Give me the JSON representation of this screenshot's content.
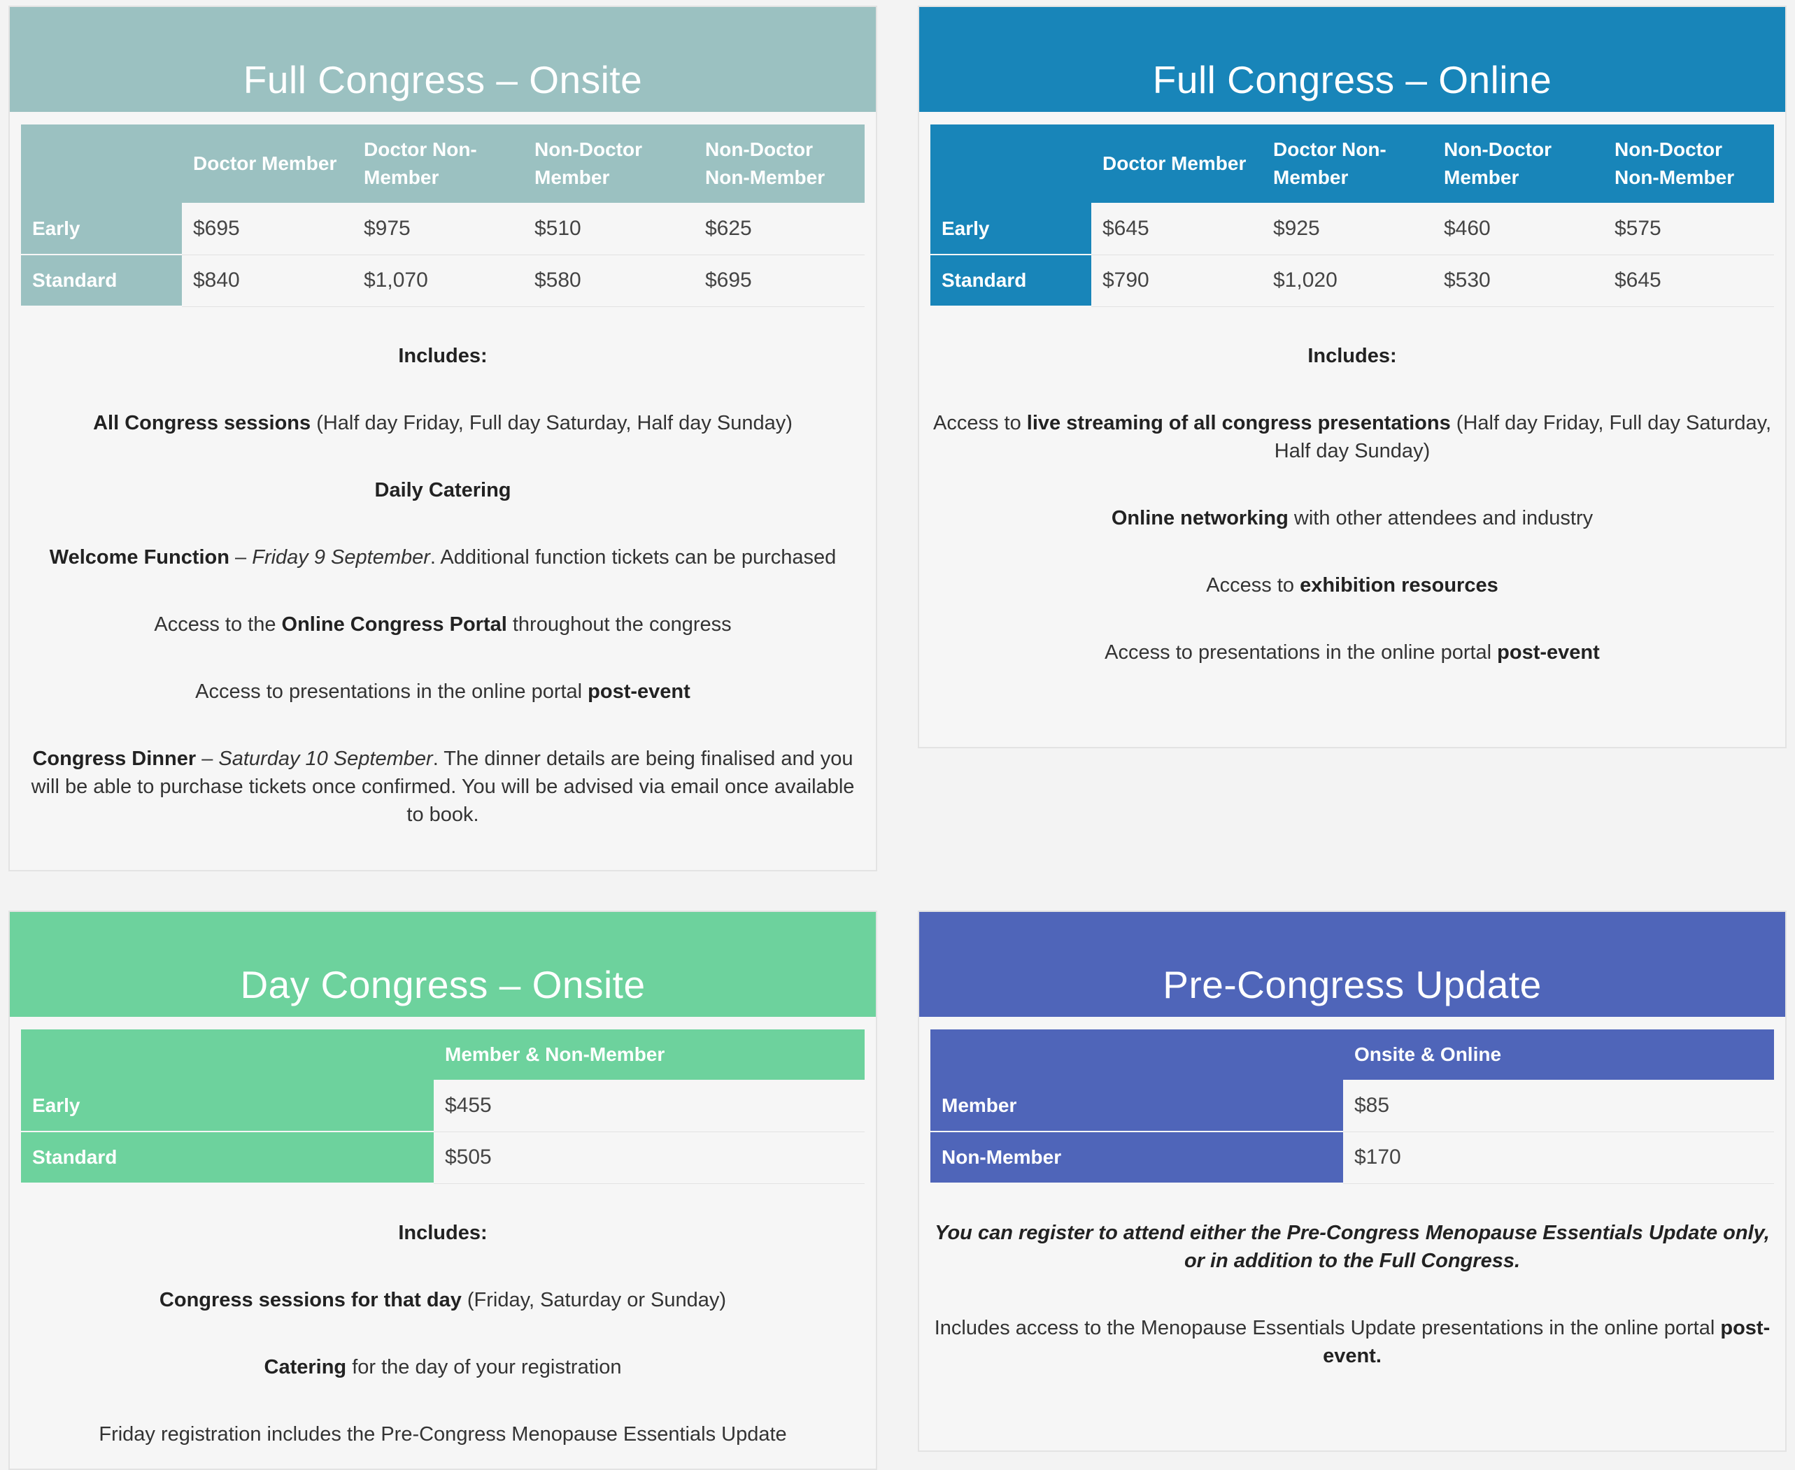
{
  "full_onsite": {
    "title": "Full Congress – Onsite",
    "columns": [
      "",
      "Doctor Member",
      "Doctor Non-Member",
      "Non-Doctor Member",
      "Non-Doctor Non-Member"
    ],
    "rows": [
      {
        "label": "Early",
        "values": [
          "$695",
          "$975",
          "$510",
          "$625"
        ]
      },
      {
        "label": "Standard",
        "values": [
          "$840",
          "$1,070",
          "$580",
          "$695"
        ]
      }
    ],
    "includes_label": "Includes:",
    "items": [
      {
        "bold": "All Congress sessions",
        "text": " (Half day Friday, Full day Saturday, Half day Sunday)"
      },
      {
        "bold": "Daily Catering"
      },
      {
        "bold": "Welcome Function",
        "sep": " – ",
        "italic": "Friday 9 September",
        "text": ". Additional function tickets can be purchased"
      },
      {
        "pre": "Access to the ",
        "bold": "Online Congress Portal",
        "text": " throughout the congress"
      },
      {
        "pre": "Access to presentations in the online portal ",
        "bold": "post-event"
      },
      {
        "bold": "Congress Dinner",
        "sep": " – ",
        "italic": "Saturday 10 September",
        "text": ". The dinner details are being finalised and you will be able to purchase tickets once confirmed. You will be advised via email once available to book."
      }
    ],
    "color": "#9bc1c1"
  },
  "full_online": {
    "title": "Full Congress – Online",
    "columns": [
      "",
      "Doctor Member",
      "Doctor Non-Member",
      "Non-Doctor Member",
      "Non-Doctor Non-Member"
    ],
    "rows": [
      {
        "label": "Early",
        "values": [
          "$645",
          "$925",
          "$460",
          "$575"
        ]
      },
      {
        "label": "Standard",
        "values": [
          "$790",
          "$1,020",
          "$530",
          "$645"
        ]
      }
    ],
    "includes_label": "Includes:",
    "items": [
      {
        "pre": "Access to ",
        "bold": "live streaming of all congress presentations",
        "text": " (Half day Friday, Full day Saturday, Half day Sunday)"
      },
      {
        "bold": "Online networking",
        "text": " with other attendees and industry"
      },
      {
        "pre": "Access to ",
        "bold": "exhibition resources"
      },
      {
        "pre": "Access to presentations in the online portal ",
        "bold": "post-event"
      }
    ],
    "color": "#1885b9"
  },
  "day_onsite": {
    "title": "Day Congress – Onsite",
    "columns": [
      "",
      "Member & Non-Member"
    ],
    "rows": [
      {
        "label": "Early",
        "values": [
          "$455"
        ]
      },
      {
        "label": "Standard",
        "values": [
          "$505"
        ]
      }
    ],
    "includes_label": "Includes:",
    "items": [
      {
        "bold": "Congress sessions for that day",
        "text": " (Friday, Saturday or Sunday)"
      },
      {
        "bold": "Catering",
        "text": " for the day of your registration"
      },
      {
        "pre": "Friday registration includes the Pre-Congress Menopause Essentials Update"
      }
    ],
    "color": "#6dd29d"
  },
  "pre_congress": {
    "title": "Pre-Congress Update",
    "columns": [
      "",
      "Onsite & Online"
    ],
    "rows": [
      {
        "label": "Member",
        "values": [
          "$85"
        ]
      },
      {
        "label": "Non-Member",
        "values": [
          "$170"
        ]
      }
    ],
    "note": "You can register to attend either the Pre-Congress Menopause Essentials Update only, or in addition to the Full Congress.",
    "items": [
      {
        "pre": "Includes access to the Menopause Essentials Update presentations in the online portal ",
        "bold": "post-event."
      }
    ],
    "color": "#4f65b9"
  }
}
